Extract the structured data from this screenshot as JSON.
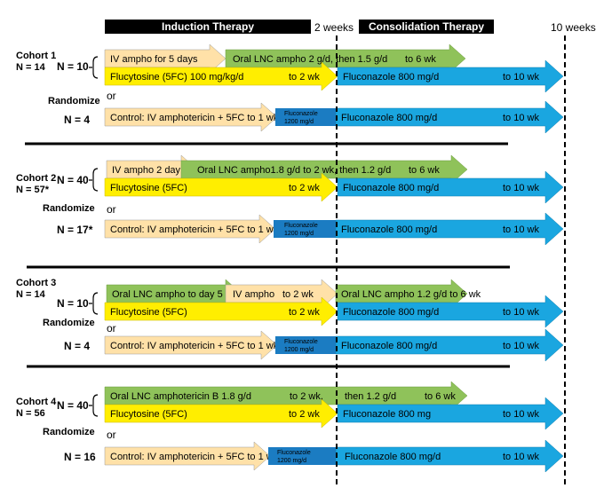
{
  "header": {
    "induction": "Induction Therapy",
    "consolidation": "Consolidation Therapy",
    "week2": "2 weeks",
    "week10": "10 weeks"
  },
  "colors": {
    "ivAmpho": "#ffe1a8",
    "oralLnc": "#8fc25a",
    "flucytosine": "#ffee00",
    "fluconazole": "#1aa6e0",
    "fluconazoleDark": "#1b7cc2",
    "header": "#000000"
  },
  "cohorts": [
    {
      "cohort": "Cohort 1",
      "n_total": "N = 14",
      "n_arm": "N = 10",
      "randomize": "Randomize",
      "or": "or",
      "n_control": "N = 4",
      "iv_box": "IV ampho for 5 days",
      "oral_box": "Oral LNC  ampho  2 g/d, then 1.5 g/d",
      "oral_end": "to 6 wk",
      "flucy_box": "Flucytosine (5FC)  100 mg/kg/d",
      "flucy_end": "to 2 wk",
      "fluco_box": "Fluconazole 800 mg/d",
      "fluco_end": "to 10 wk",
      "control_box": "Control: IV amphotericin + 5FC to 1 wk",
      "control_fluco_1": "Fluconazole",
      "control_fluco_2": "1200 mg/d",
      "control_fluco_box": "Fluconazole 800 mg/d",
      "control_end": "to 10 wk"
    },
    {
      "cohort": "Cohort 2",
      "n_total": "N = 57*",
      "n_arm": "N = 40",
      "randomize": "Randomize",
      "or": "or",
      "n_control": "N = 17*",
      "iv_box": "IV ampho 2 day",
      "oral_box": "Oral LNC ampho1.8 g/d to 2 wk, then 1.2 g/d",
      "oral_end": "to 6 wk",
      "flucy_box": "Flucytosine (5FC)",
      "flucy_end": "to 2 wk",
      "fluco_box": "Fluconazole 800 mg/d",
      "fluco_end": "to 10 wk",
      "control_box": "Control: IV amphotericin + 5FC to 1 wk",
      "control_fluco_1": "Fluconazole",
      "control_fluco_2": "1200 mg/d",
      "control_fluco_box": "Fluconazole 800 mg/d",
      "control_end": "to 10 wk"
    },
    {
      "cohort": "Cohort 3",
      "n_total": "N = 14",
      "n_arm": "N = 10",
      "randomize": "Randomize",
      "or": "or",
      "n_control": "N = 4",
      "oral_box": "Oral LNC ampho to day 5",
      "iv_box": "IV ampho",
      "iv_end": "to 2 wk",
      "oral2_box": "Oral LNC ampho 1.2 g/d to 6 wk",
      "flucy_box": "Flucytosine (5FC)",
      "flucy_end": "to 2 wk",
      "fluco_box": "Fluconazole 800 mg/d",
      "fluco_end": "to 10 wk",
      "control_box": "Control: IV amphotericin + 5FC to 1 wk",
      "control_fluco_1": "Fluconazole",
      "control_fluco_2": "1200 mg/d",
      "control_fluco_box": "Fluconazole 800 mg/d",
      "control_end": "to 10 wk"
    },
    {
      "cohort": "Cohort 4",
      "n_total": "N = 56",
      "n_arm": "N = 40",
      "randomize": "Randomize",
      "or": "or",
      "n_control": "N = 16",
      "oral_box": "Oral LNC  amphotericin B 1.8 g/d",
      "oral_mid": "to 2 wk,",
      "oral_then": "then 1.2 g/d",
      "oral_end": "to 6 wk",
      "flucy_box": "Flucytosine (5FC)",
      "flucy_end": "to 2 wk",
      "fluco_box": "Fluconazole 800 mg",
      "fluco_end": "to 10 wk",
      "control_box": "Control: IV amphotericin + 5FC to 1 wk",
      "control_fluco_1": "Fluconazole",
      "control_fluco_2": "1200 mg/d",
      "control_fluco_box": "Fluconazole 800 mg/d",
      "control_end": "to 10 wk"
    }
  ]
}
